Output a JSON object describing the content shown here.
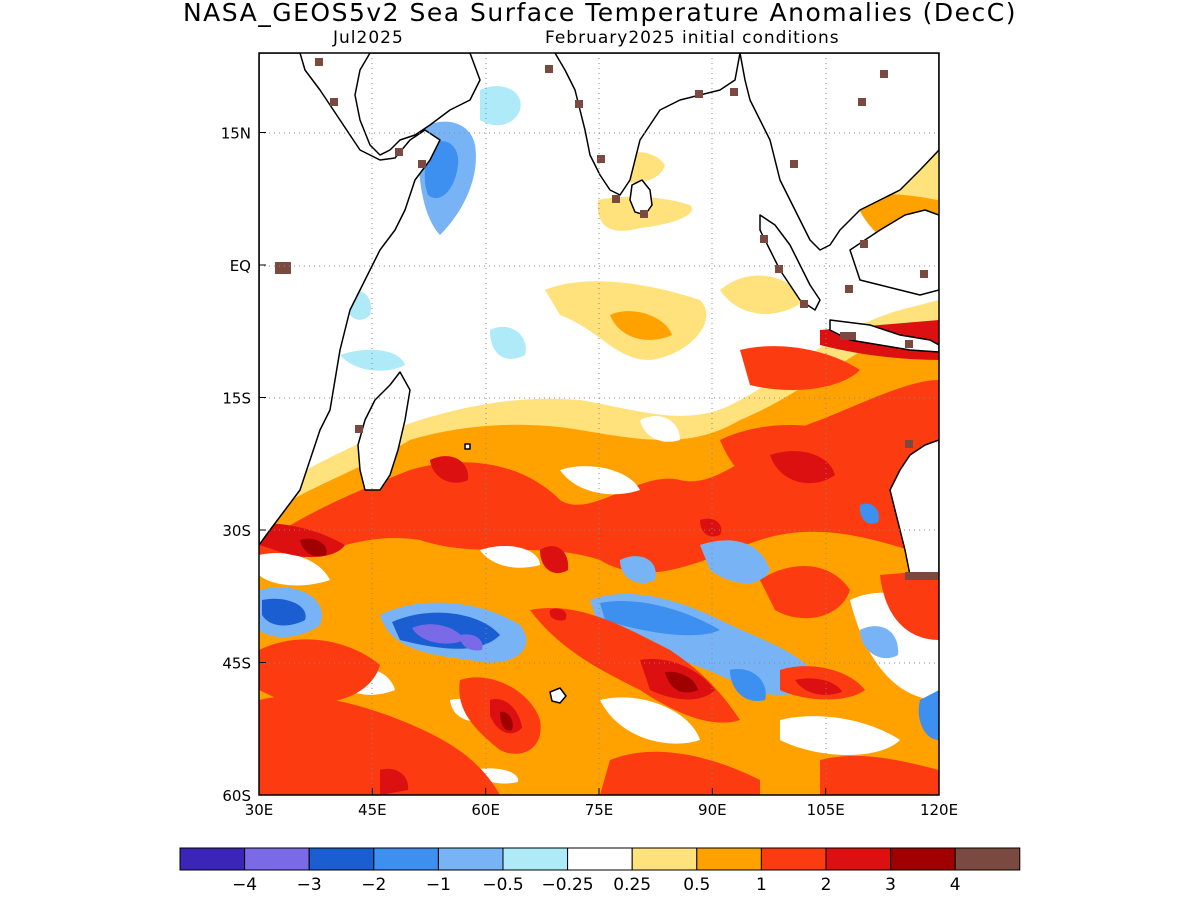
{
  "title": "NASA_GEOS5v2 Sea Surface Temperature Anomalies (DecC)",
  "subtitle_left": "Jul2025",
  "subtitle_right": "February2025 initial conditions",
  "map": {
    "region": "Indian Ocean",
    "lon_range": [
      30,
      120
    ],
    "lat_range": [
      -60,
      24
    ],
    "lon_ticks": [
      {
        "value": 30,
        "label": "30E"
      },
      {
        "value": 45,
        "label": "45E"
      },
      {
        "value": 60,
        "label": "60E"
      },
      {
        "value": 75,
        "label": "75E"
      },
      {
        "value": 90,
        "label": "90E"
      },
      {
        "value": 105,
        "label": "105E"
      },
      {
        "value": 120,
        "label": "120E"
      }
    ],
    "lat_ticks": [
      {
        "value": 15,
        "label": "15N"
      },
      {
        "value": 0,
        "label": "EQ"
      },
      {
        "value": -15,
        "label": "15S"
      },
      {
        "value": -30,
        "label": "30S"
      },
      {
        "value": -45,
        "label": "45S"
      },
      {
        "value": -60,
        "label": "60S"
      }
    ],
    "grid": "dotted"
  },
  "colorbar": {
    "colors": [
      "#3a25b8",
      "#7a6ae8",
      "#1a5ed2",
      "#3d8ff0",
      "#78b4f5",
      "#aeeaf8",
      "#ffffff",
      "#ffe27c",
      "#ffa200",
      "#fc3c10",
      "#dc1010",
      "#a00000",
      "#7a4a40"
    ],
    "labels": [
      "−4",
      "−3",
      "−2",
      "−1",
      "−0.5",
      "−0.25",
      "0.25",
      "0.5",
      "1",
      "2",
      "3",
      "4"
    ]
  }
}
